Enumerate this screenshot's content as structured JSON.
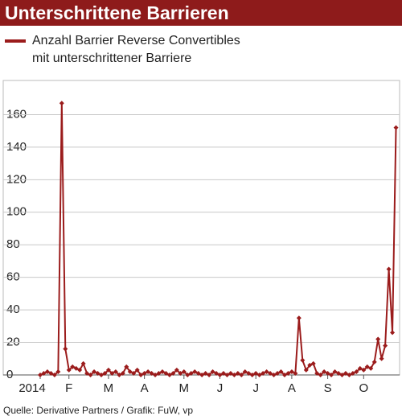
{
  "chart_data": {
    "type": "line",
    "title": "Unterschrittene Barrieren",
    "source": "Quelle: Derivative Partners / Grafik: FuW, vp",
    "categories": [
      "2014",
      null,
      null,
      null,
      null,
      null,
      null,
      null,
      "F",
      null,
      null,
      null,
      null,
      null,
      null,
      null,
      null,
      null,
      null,
      "M",
      null,
      null,
      null,
      null,
      null,
      null,
      null,
      null,
      null,
      "A",
      null,
      null,
      null,
      null,
      null,
      null,
      null,
      null,
      null,
      null,
      "M",
      null,
      null,
      null,
      null,
      null,
      null,
      null,
      null,
      null,
      "J",
      null,
      null,
      null,
      null,
      null,
      null,
      null,
      null,
      null,
      "J",
      null,
      null,
      null,
      null,
      null,
      null,
      null,
      null,
      null,
      "A",
      null,
      null,
      null,
      null,
      null,
      null,
      null,
      null,
      null,
      "S",
      null,
      null,
      null,
      null,
      null,
      null,
      null,
      null,
      null,
      "O",
      null,
      null,
      null,
      null,
      null,
      null,
      null,
      null,
      null
    ],
    "series": [
      {
        "name": "Anzahl Barrier Reverse Convertibles mit unterschrittener Barriere",
        "color": "#9b1c1c",
        "values": [
          0,
          1,
          2,
          1,
          0,
          2,
          167,
          16,
          3,
          5,
          4,
          3,
          7,
          1,
          0,
          2,
          1,
          0,
          1,
          3,
          1,
          2,
          0,
          1,
          5,
          2,
          1,
          3,
          0,
          1,
          2,
          1,
          0,
          1,
          2,
          1,
          0,
          1,
          3,
          1,
          2,
          0,
          1,
          2,
          1,
          0,
          1,
          0,
          2,
          1,
          0,
          1,
          0,
          1,
          0,
          1,
          0,
          2,
          1,
          0,
          1,
          0,
          1,
          2,
          1,
          0,
          1,
          2,
          0,
          1,
          2,
          1,
          35,
          9,
          3,
          6,
          7,
          1,
          0,
          2,
          1,
          0,
          2,
          1,
          0,
          1,
          0,
          1,
          2,
          4,
          3,
          5,
          4,
          8,
          22,
          10,
          18,
          65,
          26,
          152
        ]
      }
    ],
    "ylim": [
      0,
      180
    ],
    "yticks": [
      0,
      20,
      40,
      60,
      80,
      100,
      120,
      140,
      160
    ],
    "grid": true
  }
}
